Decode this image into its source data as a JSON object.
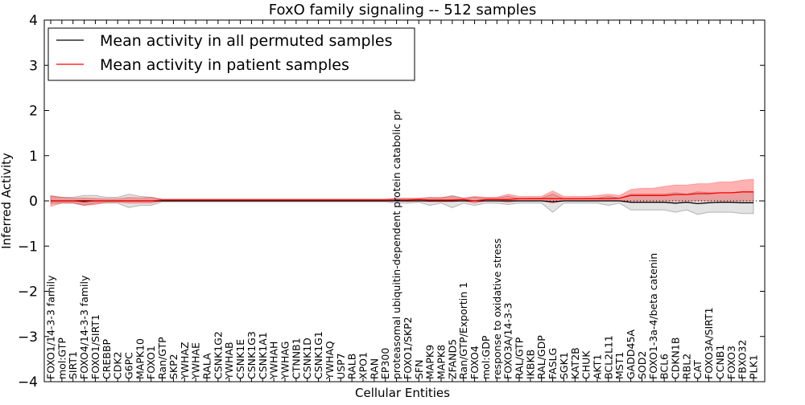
{
  "chart_data": {
    "type": "line",
    "title": "FoxO family signaling -- 512 samples",
    "xlabel": "Cellular Entities",
    "ylabel": "Inferred Activity",
    "ylim": [
      -4,
      4
    ],
    "yticks": [
      -4,
      -3,
      -2,
      -1,
      0,
      1,
      2,
      3,
      4
    ],
    "ytick_labels": [
      "−4",
      "−3",
      "−2",
      "−1",
      "0",
      "1",
      "2",
      "3",
      "4"
    ],
    "legend_position": "top-left",
    "categories": [
      "FOXO1/14-3-3 family",
      "mol:GTP",
      "SIRT1",
      "FOXO4/14-3-3 family",
      "FOXO1/SIRT1",
      "CREBBP",
      "CDK2",
      "G6PC",
      "MAPK10",
      "FOXO1",
      "Ran/GTP",
      "SKP2",
      "YWHAZ",
      "YWHAE",
      "RALA",
      "CSNK1G2",
      "YWHAB",
      "CSNK1E",
      "CSNK1G3",
      "CSNK1A1",
      "YWHAH",
      "YWHAG",
      "CTNNB1",
      "CSNK1D",
      "CSNK1G1",
      "YWHAQ",
      "USP7",
      "RALB",
      "XPO1",
      "RAN",
      "EP300",
      "proteasomal ubiquitin-dependent protein catabolic pr",
      "FOXO1/SKP2",
      "SFN",
      "MAPK9",
      "MAPK8",
      "ZFAND5",
      "Ran/GTP/Exportin 1",
      "FOXO4",
      "mol:GDP",
      "response to oxidative stress",
      "FOXO3A/14-3-3",
      "RAL/GTP",
      "IKBKB",
      "RAL/GDP",
      "FASLG",
      "SGK1",
      "KAT2B",
      "CHUK",
      "AKT1",
      "BCL2L11",
      "MST1",
      "GADD45A",
      "SOD2",
      "FOXO1-3a-4/beta catenin",
      "BCL6",
      "CDKN1B",
      "RBL2",
      "CAT",
      "FOXO3A/SIRT1",
      "CCNB1",
      "FOXO3",
      "FBXO32",
      "PLK1"
    ],
    "series": [
      {
        "name": "Mean activity in all permuted samples",
        "color": "#000000",
        "values": [
          0.0,
          0.0,
          0.0,
          0.0,
          0.0,
          0.0,
          0.0,
          0.0,
          0.0,
          0.0,
          0.0,
          0.0,
          0.0,
          0.0,
          0.0,
          0.0,
          0.0,
          0.0,
          0.0,
          0.0,
          0.0,
          0.0,
          0.0,
          0.0,
          0.0,
          0.0,
          0.0,
          0.0,
          0.0,
          0.0,
          0.0,
          0.0,
          0.0,
          0.0,
          0.0,
          0.0,
          0.0,
          0.0,
          0.0,
          0.0,
          0.0,
          0.0,
          0.0,
          0.0,
          0.0,
          -0.02,
          0.0,
          0.0,
          0.0,
          0.0,
          0.0,
          0.0,
          -0.03,
          -0.03,
          -0.03,
          -0.03,
          -0.05,
          -0.03,
          -0.06,
          -0.04,
          -0.03,
          -0.03,
          -0.04,
          -0.04
        ],
        "lower": [
          -0.05,
          -0.05,
          -0.05,
          -0.1,
          -0.05,
          -0.05,
          -0.05,
          -0.15,
          -0.1,
          -0.1,
          -0.02,
          -0.02,
          -0.02,
          -0.02,
          -0.02,
          -0.02,
          -0.02,
          -0.02,
          -0.02,
          -0.02,
          -0.02,
          -0.02,
          -0.02,
          -0.02,
          -0.02,
          -0.02,
          -0.02,
          -0.02,
          -0.02,
          -0.02,
          -0.02,
          -0.05,
          -0.05,
          -0.03,
          -0.1,
          -0.05,
          -0.15,
          -0.05,
          -0.1,
          -0.05,
          -0.05,
          -0.08,
          -0.05,
          -0.05,
          -0.05,
          -0.25,
          -0.05,
          -0.05,
          -0.05,
          -0.05,
          -0.1,
          -0.05,
          -0.2,
          -0.2,
          -0.2,
          -0.2,
          -0.25,
          -0.2,
          -0.3,
          -0.25,
          -0.25,
          -0.25,
          -0.28,
          -0.28
        ],
        "upper": [
          0.1,
          0.08,
          0.08,
          0.12,
          0.12,
          0.08,
          0.08,
          0.15,
          0.1,
          0.08,
          0.03,
          0.03,
          0.03,
          0.03,
          0.03,
          0.03,
          0.03,
          0.03,
          0.03,
          0.03,
          0.03,
          0.03,
          0.03,
          0.03,
          0.03,
          0.03,
          0.03,
          0.03,
          0.03,
          0.03,
          0.03,
          0.06,
          0.06,
          0.05,
          0.08,
          0.06,
          0.12,
          0.06,
          0.08,
          0.06,
          0.06,
          0.1,
          0.05,
          0.06,
          0.06,
          0.15,
          0.05,
          0.05,
          0.06,
          0.06,
          0.1,
          0.06,
          0.15,
          0.15,
          0.15,
          0.15,
          0.18,
          0.15,
          0.2,
          0.18,
          0.18,
          0.18,
          0.2,
          0.2
        ]
      },
      {
        "name": "Mean activity in patient samples",
        "color": "#ff0000",
        "values": [
          0.0,
          0.0,
          0.0,
          -0.02,
          0.0,
          0.0,
          0.0,
          0.0,
          0.0,
          0.0,
          0.02,
          0.02,
          0.02,
          0.02,
          0.02,
          0.02,
          0.02,
          0.02,
          0.02,
          0.02,
          0.02,
          0.02,
          0.02,
          0.02,
          0.02,
          0.02,
          0.02,
          0.02,
          0.02,
          0.02,
          0.02,
          0.02,
          0.02,
          0.03,
          0.02,
          0.02,
          0.02,
          0.03,
          0.0,
          0.03,
          0.03,
          0.03,
          0.05,
          0.05,
          0.05,
          0.05,
          0.05,
          0.05,
          0.05,
          0.05,
          0.05,
          0.06,
          0.12,
          0.12,
          0.12,
          0.12,
          0.14,
          0.14,
          0.16,
          0.16,
          0.18,
          0.18,
          0.2,
          0.2
        ],
        "lower": [
          -0.12,
          -0.05,
          -0.05,
          -0.1,
          -0.08,
          -0.03,
          -0.03,
          -0.05,
          -0.05,
          -0.05,
          0.0,
          0.0,
          0.0,
          0.0,
          0.0,
          0.0,
          0.0,
          0.0,
          0.0,
          0.0,
          0.0,
          0.0,
          0.0,
          0.0,
          0.0,
          0.0,
          0.0,
          0.0,
          0.0,
          0.0,
          0.0,
          0.0,
          -0.01,
          0.0,
          -0.02,
          -0.02,
          -0.02,
          0.0,
          -0.05,
          0.0,
          0.0,
          -0.03,
          0.0,
          0.0,
          0.0,
          -0.05,
          0.0,
          0.0,
          0.0,
          0.0,
          0.0,
          0.0,
          0.0,
          0.0,
          0.0,
          0.0,
          0.0,
          0.0,
          0.0,
          0.0,
          0.0,
          0.0,
          0.0,
          0.0
        ],
        "upper": [
          0.12,
          0.08,
          0.06,
          0.07,
          0.06,
          0.05,
          0.05,
          0.08,
          0.07,
          0.08,
          0.04,
          0.04,
          0.04,
          0.04,
          0.04,
          0.04,
          0.04,
          0.04,
          0.04,
          0.04,
          0.04,
          0.04,
          0.04,
          0.04,
          0.04,
          0.04,
          0.04,
          0.04,
          0.04,
          0.04,
          0.04,
          0.05,
          0.05,
          0.06,
          0.07,
          0.08,
          0.1,
          0.06,
          0.1,
          0.08,
          0.08,
          0.15,
          0.1,
          0.1,
          0.1,
          0.22,
          0.1,
          0.1,
          0.1,
          0.12,
          0.15,
          0.12,
          0.25,
          0.28,
          0.28,
          0.32,
          0.35,
          0.35,
          0.38,
          0.38,
          0.42,
          0.42,
          0.46,
          0.48
        ]
      }
    ]
  }
}
